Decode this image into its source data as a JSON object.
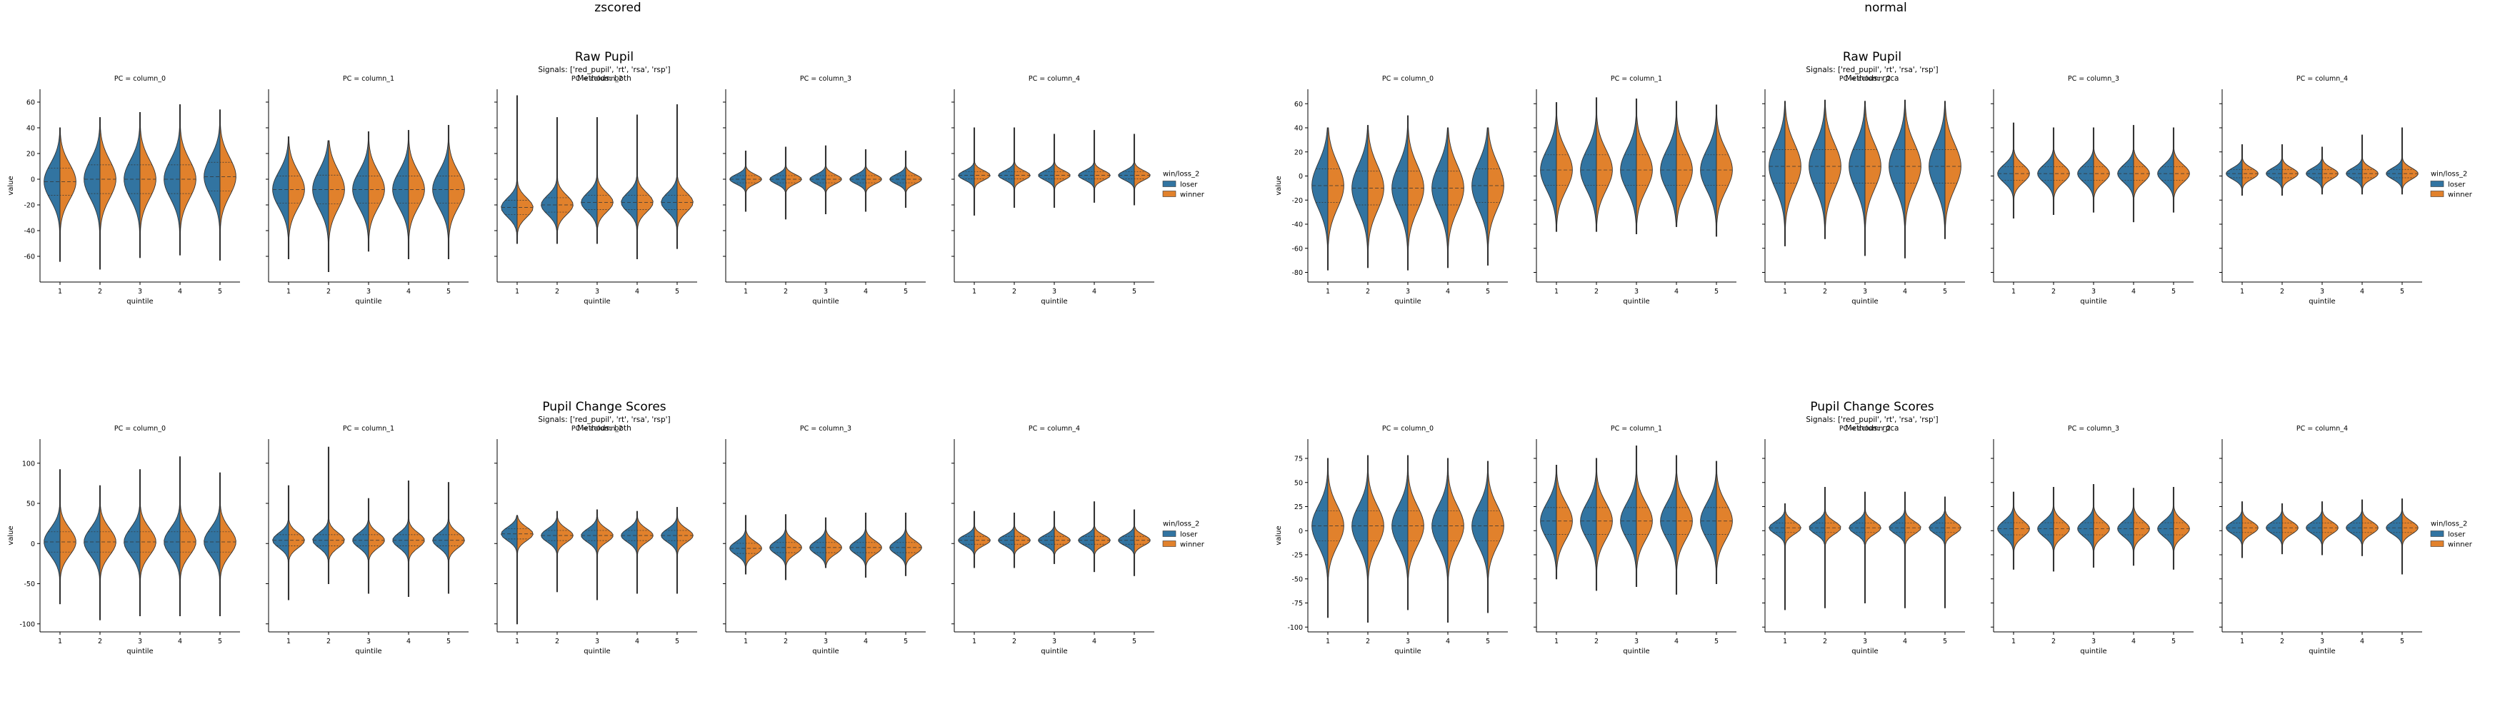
{
  "groups": [
    {
      "heading": "zscored",
      "figures": [
        {
          "title": "Raw Pupil",
          "subtitle_lines": [
            "Signals: ['red_pupil', 'rt', 'rsa', 'rsp']",
            "Methods: both"
          ],
          "ylabel": "value",
          "xlabel": "quintile",
          "legend_title": "win/loss_2",
          "legend_labels": [
            "loser",
            "winner"
          ],
          "ylim": [
            -80,
            70
          ],
          "yticks": [
            -60,
            -40,
            -20,
            0,
            20,
            40,
            60
          ]
        },
        {
          "title": "Pupil Change Scores",
          "subtitle_lines": [
            "Signals: ['red_pupil', 'rt', 'rsa', 'rsp']",
            "Methods: both"
          ],
          "ylabel": "value",
          "xlabel": "quintile",
          "legend_title": "win/loss_2",
          "legend_labels": [
            "loser",
            "winner"
          ],
          "ylim": [
            -110,
            130
          ],
          "yticks": [
            -100,
            -50,
            0,
            50,
            100
          ]
        }
      ]
    },
    {
      "heading": "normal",
      "figures": [
        {
          "title": "Raw Pupil",
          "subtitle_lines": [
            "Signals: ['red_pupil', 'rt', 'rsa', 'rsp']",
            "Methods: rpca"
          ],
          "ylabel": "value",
          "xlabel": "quintile",
          "legend_title": "win/loss_2",
          "legend_labels": [
            "loser",
            "winner"
          ],
          "ylim": [
            -88,
            72
          ],
          "yticks": [
            -80,
            -60,
            -40,
            -20,
            0,
            20,
            40,
            60
          ]
        },
        {
          "title": "Pupil Change Scores",
          "subtitle_lines": [
            "Signals: ['red_pupil', 'rt', 'rsa', 'rsp']",
            "Methods: rpca"
          ],
          "ylabel": "value",
          "xlabel": "quintile",
          "legend_title": "win/loss_2",
          "legend_labels": [
            "loser",
            "winner"
          ],
          "ylim": [
            -105,
            95
          ],
          "yticks": [
            -100,
            -75,
            -50,
            -25,
            0,
            25,
            50,
            75
          ]
        }
      ]
    }
  ],
  "colors": {
    "loser": "#3274a1",
    "winner": "#e1812c",
    "outline": "#333333"
  },
  "chart_data": [
    {
      "type": "violin",
      "group": "zscored",
      "figure": "Raw Pupil",
      "facet_labels": [
        "PC = column_0",
        "PC = column_1",
        "PC = column_2",
        "PC = column_3",
        "PC = column_4"
      ],
      "categories": [
        "1",
        "2",
        "3",
        "4",
        "5"
      ],
      "hue_labels": [
        "loser",
        "winner"
      ],
      "split": true,
      "ylim": [
        -80,
        70
      ],
      "ylabel": "value",
      "xlabel": "quintile",
      "legend": "right",
      "facets": [
        {
          "mode": [
            -2,
            0,
            0,
            0,
            2
          ],
          "spread": [
            15,
            16,
            16,
            16,
            16
          ],
          "min": [
            -64,
            -70,
            -61,
            -59,
            -63
          ],
          "max": [
            40,
            48,
            52,
            58,
            54
          ]
        },
        {
          "mode": [
            -8,
            -8,
            -8,
            -8,
            -8
          ],
          "spread": [
            15,
            16,
            15,
            15,
            15
          ],
          "min": [
            -62,
            -72,
            -56,
            -62,
            -62
          ],
          "max": [
            33,
            30,
            37,
            38,
            42
          ]
        },
        {
          "mode": [
            -22,
            -20,
            -18,
            -18,
            -18
          ],
          "spread": [
            8,
            8,
            8,
            8,
            8
          ],
          "min": [
            -50,
            -50,
            -50,
            -62,
            -54
          ],
          "max": [
            65,
            48,
            48,
            50,
            58
          ]
        },
        {
          "mode": [
            0,
            0,
            0,
            0,
            0
          ],
          "spread": [
            4,
            4,
            4,
            4,
            4
          ],
          "min": [
            -25,
            -31,
            -27,
            -25,
            -22
          ],
          "max": [
            22,
            25,
            26,
            23,
            22
          ]
        },
        {
          "mode": [
            3,
            3,
            3,
            3,
            3
          ],
          "spread": [
            4,
            4,
            4,
            4,
            4
          ],
          "min": [
            -28,
            -22,
            -22,
            -18,
            -20
          ],
          "max": [
            40,
            40,
            35,
            38,
            35
          ]
        }
      ]
    },
    {
      "type": "violin",
      "group": "zscored",
      "figure": "Pupil Change Scores",
      "facet_labels": [
        "PC = column_0",
        "PC = column_1",
        "PC = column_2",
        "PC = column_3",
        "PC = column_4"
      ],
      "categories": [
        "1",
        "2",
        "3",
        "4",
        "5"
      ],
      "hue_labels": [
        "loser",
        "winner"
      ],
      "split": true,
      "ylim": [
        -110,
        130
      ],
      "ylabel": "value",
      "xlabel": "quintile",
      "legend": "right",
      "facets": [
        {
          "mode": [
            2,
            2,
            2,
            2,
            2
          ],
          "spread": [
            18,
            18,
            18,
            18,
            18
          ],
          "min": [
            -75,
            -95,
            -90,
            -90,
            -90
          ],
          "max": [
            92,
            72,
            92,
            108,
            88
          ]
        },
        {
          "mode": [
            4,
            4,
            4,
            4,
            4
          ],
          "spread": [
            10,
            10,
            10,
            10,
            10
          ],
          "min": [
            -70,
            -50,
            -62,
            -66,
            -62
          ],
          "max": [
            72,
            120,
            56,
            78,
            76
          ]
        },
        {
          "mode": [
            12,
            10,
            10,
            10,
            10
          ],
          "spread": [
            9,
            9,
            9,
            9,
            9
          ],
          "min": [
            -100,
            -60,
            -70,
            -62,
            -62
          ],
          "max": [
            35,
            40,
            42,
            40,
            45
          ]
        },
        {
          "mode": [
            -6,
            -5,
            -5,
            -5,
            -5
          ],
          "spread": [
            9,
            9,
            9,
            9,
            9
          ],
          "min": [
            -38,
            -45,
            -30,
            -42,
            -40
          ],
          "max": [
            35,
            36,
            32,
            38,
            38
          ]
        },
        {
          "mode": [
            4,
            4,
            4,
            4,
            4
          ],
          "spread": [
            7,
            7,
            7,
            7,
            7
          ],
          "min": [
            -30,
            -30,
            -25,
            -35,
            -40
          ],
          "max": [
            40,
            38,
            40,
            52,
            42
          ]
        }
      ]
    },
    {
      "type": "violin",
      "group": "normal",
      "figure": "Raw Pupil",
      "facet_labels": [
        "PC = column_0",
        "PC = column_1",
        "PC = column_2",
        "PC = column_3",
        "PC = column_4"
      ],
      "categories": [
        "1",
        "2",
        "3",
        "4",
        "5"
      ],
      "hue_labels": [
        "loser",
        "winner"
      ],
      "split": true,
      "ylim": [
        -88,
        72
      ],
      "ylabel": "value",
      "xlabel": "quintile",
      "legend": "right",
      "facets": [
        {
          "mode": [
            -8,
            -10,
            -10,
            -10,
            -8
          ],
          "spread": [
            20,
            20,
            20,
            20,
            20
          ],
          "min": [
            -78,
            -76,
            -78,
            -76,
            -74
          ],
          "max": [
            40,
            42,
            50,
            40,
            40
          ]
        },
        {
          "mode": [
            5,
            5,
            5,
            5,
            5
          ],
          "spread": [
            18,
            18,
            18,
            18,
            18
          ],
          "min": [
            -46,
            -46,
            -48,
            -42,
            -50
          ],
          "max": [
            61,
            65,
            64,
            62,
            59
          ]
        },
        {
          "mode": [
            8,
            8,
            8,
            8,
            8
          ],
          "spread": [
            20,
            20,
            20,
            20,
            20
          ],
          "min": [
            -58,
            -52,
            -66,
            -68,
            -52
          ],
          "max": [
            62,
            63,
            62,
            63,
            62
          ]
        },
        {
          "mode": [
            2,
            2,
            2,
            2,
            2
          ],
          "spread": [
            8,
            8,
            8,
            8,
            8
          ],
          "min": [
            -35,
            -32,
            -30,
            -38,
            -30
          ],
          "max": [
            44,
            40,
            40,
            42,
            40
          ]
        },
        {
          "mode": [
            2,
            2,
            2,
            2,
            2
          ],
          "spread": [
            5,
            5,
            5,
            5,
            5
          ],
          "min": [
            -16,
            -16,
            -15,
            -15,
            -15
          ],
          "max": [
            26,
            26,
            24,
            34,
            40
          ]
        }
      ]
    },
    {
      "type": "violin",
      "group": "normal",
      "figure": "Pupil Change Scores",
      "facet_labels": [
        "PC = column_0",
        "PC = column_1",
        "PC = column_2",
        "PC = column_3",
        "PC = column_4"
      ],
      "categories": [
        "1",
        "2",
        "3",
        "4",
        "5"
      ],
      "hue_labels": [
        "loser",
        "winner"
      ],
      "split": true,
      "ylim": [
        -105,
        95
      ],
      "ylabel": "value",
      "xlabel": "quintile",
      "legend": "right",
      "facets": [
        {
          "mode": [
            5,
            5,
            5,
            5,
            5
          ],
          "spread": [
            22,
            22,
            22,
            22,
            22
          ],
          "min": [
            -90,
            -95,
            -82,
            -95,
            -85
          ],
          "max": [
            75,
            78,
            78,
            75,
            72
          ]
        },
        {
          "mode": [
            10,
            10,
            10,
            10,
            10
          ],
          "spread": [
            20,
            20,
            20,
            20,
            20
          ],
          "min": [
            -50,
            -62,
            -58,
            -66,
            -55
          ],
          "max": [
            68,
            75,
            88,
            78,
            72
          ]
        },
        {
          "mode": [
            3,
            3,
            3,
            3,
            3
          ],
          "spread": [
            7,
            7,
            7,
            7,
            7
          ],
          "min": [
            -82,
            -80,
            -75,
            -80,
            -80
          ],
          "max": [
            28,
            45,
            40,
            40,
            35
          ]
        },
        {
          "mode": [
            2,
            2,
            2,
            2,
            2
          ],
          "spread": [
            9,
            9,
            9,
            9,
            9
          ],
          "min": [
            -40,
            -42,
            -38,
            -36,
            -40
          ],
          "max": [
            40,
            45,
            48,
            44,
            45
          ]
        },
        {
          "mode": [
            3,
            3,
            3,
            3,
            3
          ],
          "spread": [
            7,
            7,
            7,
            7,
            7
          ],
          "min": [
            -28,
            -24,
            -25,
            -26,
            -45
          ],
          "max": [
            30,
            28,
            30,
            32,
            33
          ]
        }
      ]
    }
  ]
}
